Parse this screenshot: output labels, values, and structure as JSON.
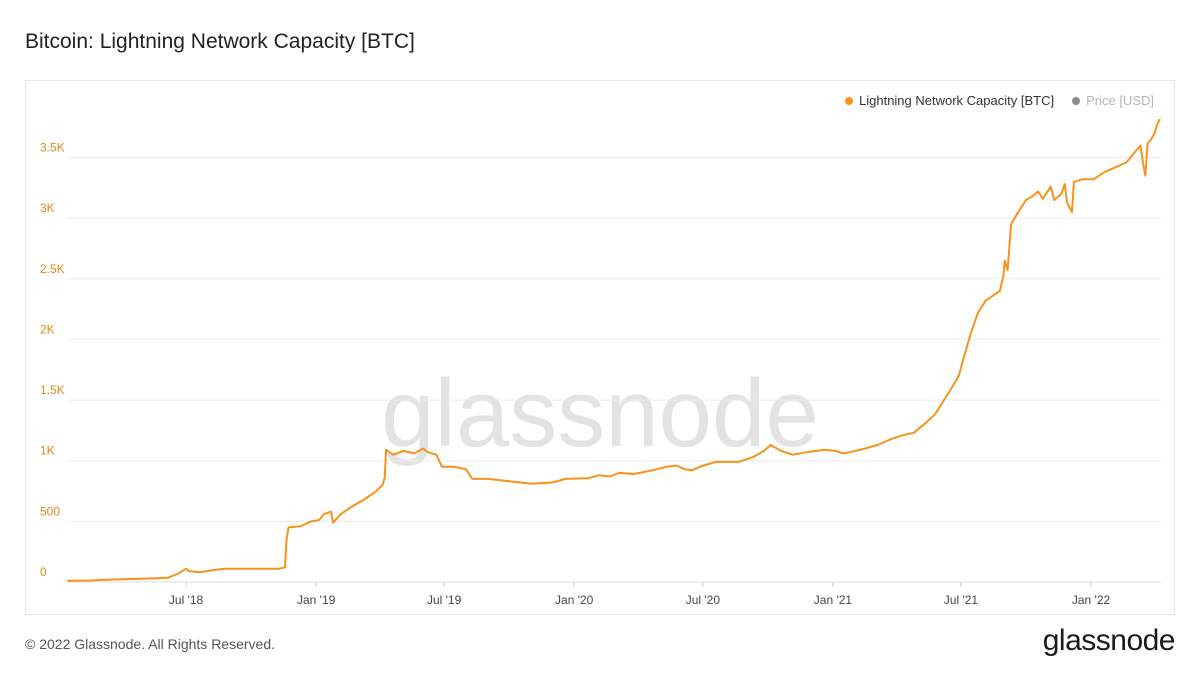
{
  "title": "Bitcoin: Lightning Network Capacity [BTC]",
  "watermark": "glassnode",
  "footer": {
    "copyright": "© 2022 Glassnode. All Rights Reserved.",
    "brand": "glassnode"
  },
  "colors": {
    "series": "#f7931a",
    "axis_text": "#e08a1c",
    "grid": "#ececec",
    "muted": "#8c8c8c",
    "watermark": "#e3e3e3"
  },
  "legend": [
    {
      "label": "Lightning Network Capacity [BTC]",
      "color": "#f7931a",
      "active": true
    },
    {
      "label": "Price [USD]",
      "color": "#8c8c8c",
      "active": false
    }
  ],
  "chart_data": {
    "type": "line",
    "title": "Bitcoin: Lightning Network Capacity [BTC]",
    "xlabel": "",
    "ylabel": "",
    "ylim": [
      0,
      3900
    ],
    "xlim": [
      "2018-01-15",
      "2022-04-10"
    ],
    "y_ticks": [
      {
        "value": 0,
        "label": "0"
      },
      {
        "value": 500,
        "label": "500"
      },
      {
        "value": 1000,
        "label": "1K"
      },
      {
        "value": 1500,
        "label": "1.5K"
      },
      {
        "value": 2000,
        "label": "2K"
      },
      {
        "value": 2500,
        "label": "2.5K"
      },
      {
        "value": 3000,
        "label": "3K"
      },
      {
        "value": 3500,
        "label": "3.5K"
      }
    ],
    "x_ticks": [
      {
        "date": "2018-07-01",
        "label": "Jul '18"
      },
      {
        "date": "2019-01-01",
        "label": "Jan '19"
      },
      {
        "date": "2019-07-01",
        "label": "Jul '19"
      },
      {
        "date": "2020-01-01",
        "label": "Jan '20"
      },
      {
        "date": "2020-07-01",
        "label": "Jul '20"
      },
      {
        "date": "2021-01-01",
        "label": "Jan '21"
      },
      {
        "date": "2021-07-01",
        "label": "Jul '21"
      },
      {
        "date": "2022-01-01",
        "label": "Jan '22"
      }
    ],
    "grid": true,
    "legend_position": "top-right",
    "series": [
      {
        "name": "Lightning Network Capacity [BTC]",
        "color": "#f7931a",
        "points": [
          [
            "2018-01-15",
            10
          ],
          [
            "2018-02-15",
            12
          ],
          [
            "2018-03-15",
            20
          ],
          [
            "2018-04-15",
            25
          ],
          [
            "2018-05-15",
            30
          ],
          [
            "2018-06-05",
            35
          ],
          [
            "2018-06-20",
            70
          ],
          [
            "2018-07-01",
            110
          ],
          [
            "2018-07-05",
            90
          ],
          [
            "2018-07-20",
            80
          ],
          [
            "2018-08-10",
            100
          ],
          [
            "2018-08-25",
            110
          ],
          [
            "2018-09-15",
            110
          ],
          [
            "2018-10-15",
            110
          ],
          [
            "2018-11-10",
            110
          ],
          [
            "2018-11-18",
            120
          ],
          [
            "2018-11-20",
            350
          ],
          [
            "2018-11-23",
            450
          ],
          [
            "2018-12-10",
            460
          ],
          [
            "2018-12-25",
            500
          ],
          [
            "2019-01-05",
            510
          ],
          [
            "2019-01-12",
            560
          ],
          [
            "2019-01-22",
            580
          ],
          [
            "2019-01-25",
            490
          ],
          [
            "2019-02-05",
            560
          ],
          [
            "2019-02-20",
            620
          ],
          [
            "2019-03-10",
            680
          ],
          [
            "2019-03-25",
            740
          ],
          [
            "2019-04-05",
            800
          ],
          [
            "2019-04-08",
            860
          ],
          [
            "2019-04-10",
            1090
          ],
          [
            "2019-04-20",
            1050
          ],
          [
            "2019-05-05",
            1080
          ],
          [
            "2019-05-20",
            1060
          ],
          [
            "2019-06-01",
            1100
          ],
          [
            "2019-06-08",
            1070
          ],
          [
            "2019-06-20",
            1050
          ],
          [
            "2019-06-28",
            950
          ],
          [
            "2019-07-15",
            950
          ],
          [
            "2019-08-01",
            930
          ],
          [
            "2019-08-10",
            850
          ],
          [
            "2019-09-01",
            850
          ],
          [
            "2019-10-01",
            830
          ],
          [
            "2019-11-01",
            810
          ],
          [
            "2019-12-01",
            820
          ],
          [
            "2019-12-20",
            850
          ],
          [
            "2020-01-20",
            855
          ],
          [
            "2020-02-05",
            880
          ],
          [
            "2020-02-20",
            870
          ],
          [
            "2020-03-05",
            900
          ],
          [
            "2020-03-25",
            890
          ],
          [
            "2020-04-20",
            920
          ],
          [
            "2020-05-10",
            950
          ],
          [
            "2020-05-25",
            960
          ],
          [
            "2020-06-05",
            930
          ],
          [
            "2020-06-15",
            920
          ],
          [
            "2020-07-01",
            960
          ],
          [
            "2020-07-20",
            990
          ],
          [
            "2020-08-20",
            990
          ],
          [
            "2020-09-10",
            1030
          ],
          [
            "2020-09-25",
            1080
          ],
          [
            "2020-10-05",
            1130
          ],
          [
            "2020-10-20",
            1080
          ],
          [
            "2020-11-05",
            1050
          ],
          [
            "2020-11-25",
            1070
          ],
          [
            "2020-12-20",
            1090
          ],
          [
            "2021-01-05",
            1080
          ],
          [
            "2021-01-15",
            1060
          ],
          [
            "2021-01-25",
            1070
          ],
          [
            "2021-02-15",
            1100
          ],
          [
            "2021-03-05",
            1130
          ],
          [
            "2021-03-25",
            1180
          ],
          [
            "2021-04-10",
            1210
          ],
          [
            "2021-04-25",
            1230
          ],
          [
            "2021-05-10",
            1300
          ],
          [
            "2021-05-25",
            1380
          ],
          [
            "2021-06-05",
            1480
          ],
          [
            "2021-06-18",
            1600
          ],
          [
            "2021-06-28",
            1700
          ],
          [
            "2021-07-05",
            1850
          ],
          [
            "2021-07-15",
            2050
          ],
          [
            "2021-07-25",
            2220
          ],
          [
            "2021-08-05",
            2320
          ],
          [
            "2021-08-15",
            2360
          ],
          [
            "2021-08-25",
            2400
          ],
          [
            "2021-08-30",
            2520
          ],
          [
            "2021-09-01",
            2650
          ],
          [
            "2021-09-05",
            2570
          ],
          [
            "2021-09-10",
            2950
          ],
          [
            "2021-09-20",
            3050
          ],
          [
            "2021-10-01",
            3150
          ],
          [
            "2021-10-10",
            3180
          ],
          [
            "2021-10-18",
            3220
          ],
          [
            "2021-10-25",
            3160
          ],
          [
            "2021-11-05",
            3260
          ],
          [
            "2021-11-10",
            3150
          ],
          [
            "2021-11-20",
            3200
          ],
          [
            "2021-11-25",
            3280
          ],
          [
            "2021-11-28",
            3130
          ],
          [
            "2021-12-05",
            3050
          ],
          [
            "2021-12-08",
            3300
          ],
          [
            "2021-12-20",
            3320
          ],
          [
            "2022-01-05",
            3320
          ],
          [
            "2022-01-20",
            3380
          ],
          [
            "2022-02-05",
            3420
          ],
          [
            "2022-02-20",
            3460
          ],
          [
            "2022-03-05",
            3550
          ],
          [
            "2022-03-12",
            3600
          ],
          [
            "2022-03-16",
            3440
          ],
          [
            "2022-03-19",
            3350
          ],
          [
            "2022-03-22",
            3620
          ],
          [
            "2022-03-26",
            3640
          ],
          [
            "2022-04-01",
            3700
          ],
          [
            "2022-04-05",
            3780
          ],
          [
            "2022-04-08",
            3810
          ]
        ]
      }
    ]
  }
}
